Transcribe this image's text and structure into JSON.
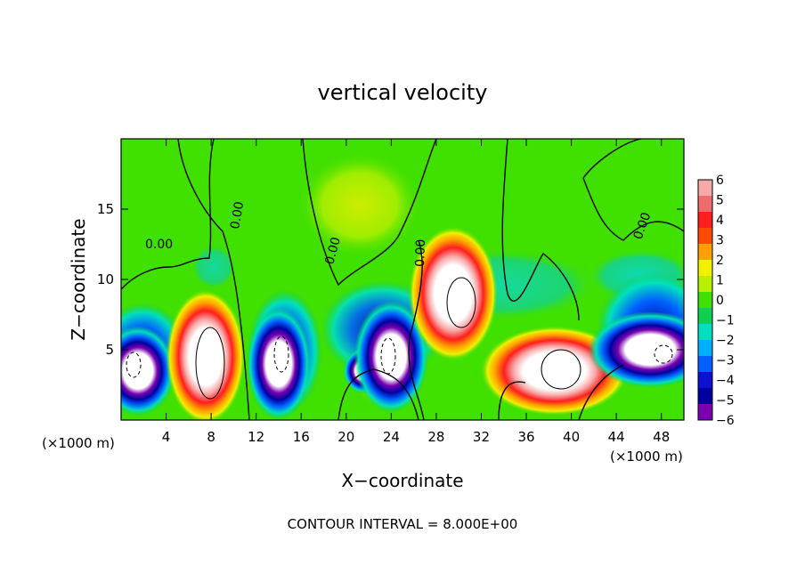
{
  "chart_data": {
    "type": "heatmap",
    "title": "vertical velocity",
    "xlabel": "X−coordinate",
    "ylabel": "Z−coordinate",
    "x_unit_left": "(×1000 m)",
    "x_unit_right": "(×1000 m)",
    "footer": "CONTOUR INTERVAL = 8.000E+00",
    "xlim": [
      0,
      50
    ],
    "ylim": [
      0,
      20
    ],
    "x_ticks": [
      4,
      8,
      12,
      16,
      20,
      24,
      28,
      32,
      36,
      40,
      44,
      48
    ],
    "y_ticks": [
      5,
      10,
      15
    ],
    "colorbar": {
      "ticks": [
        6,
        5,
        4,
        3,
        2,
        1,
        0,
        -1,
        -2,
        -3,
        -4,
        -5,
        -6
      ],
      "tick_labels": [
        "6",
        "5",
        "4",
        "3",
        "2",
        "1",
        "0",
        "−1",
        "−2",
        "−3",
        "−4",
        "−5",
        "−6"
      ],
      "colors": [
        "#f7a8a8",
        "#f06c6c",
        "#ff1e1e",
        "#ff4a00",
        "#ffa000",
        "#f0f000",
        "#b8f000",
        "#40e000",
        "#10d050",
        "#00e0c0",
        "#00b0ff",
        "#0060ff",
        "#1010d0",
        "#0000a0",
        "#7a00b0"
      ]
    },
    "contour_labels": [
      "0.00",
      "0.00",
      "0.00",
      "0.00",
      "0.00"
    ],
    "cells": [
      {
        "x": 1.5,
        "z": 3.5,
        "w": 1.5,
        "h": 2.0,
        "value": -8.0
      },
      {
        "x": 7.5,
        "z": 4.5,
        "w": 1.6,
        "h": 3.0,
        "value": 8.0
      },
      {
        "x": 14.0,
        "z": 4.0,
        "w": 1.3,
        "h": 2.5,
        "value": -8.0
      },
      {
        "x": 21.5,
        "z": 3.5,
        "w": 0.8,
        "h": 1.0,
        "value": -6.0
      },
      {
        "x": 24.0,
        "z": 4.5,
        "w": 1.5,
        "h": 2.5,
        "value": -8.0
      },
      {
        "x": 29.5,
        "z": 9.0,
        "w": 1.8,
        "h": 3.0,
        "value": 8.0
      },
      {
        "x": 38.5,
        "z": 3.5,
        "w": 3.0,
        "h": 2.0,
        "value": 8.0
      },
      {
        "x": 47.0,
        "z": 5.0,
        "w": 2.5,
        "h": 1.7,
        "value": -8.0
      }
    ]
  }
}
